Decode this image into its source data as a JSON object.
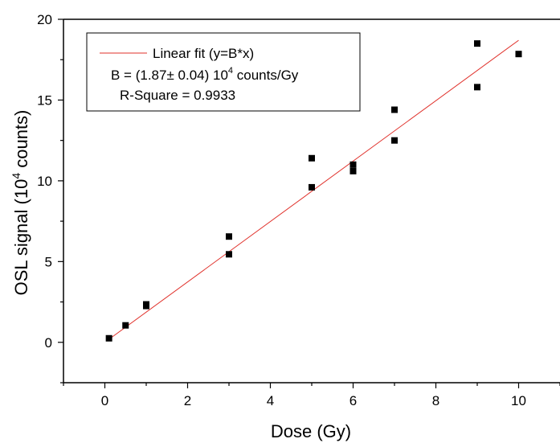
{
  "chart_data": {
    "type": "scatter",
    "xlabel": "Dose (Gy)",
    "ylabel_main": "OSL signal (10",
    "ylabel_sup": "4",
    "ylabel_tail": " counts)",
    "xlim": [
      -1,
      11
    ],
    "ylim": [
      -2.5,
      20
    ],
    "x_ticks": [
      0,
      2,
      4,
      6,
      8,
      10
    ],
    "y_ticks": [
      0,
      5,
      10,
      15,
      20
    ],
    "grid": false,
    "legend_placement": "top-left",
    "series": [
      {
        "marker": "square",
        "color": "#000000",
        "x": [
          0.1,
          0.5,
          1,
          1,
          3,
          3,
          5,
          5,
          6,
          6,
          7,
          7,
          9,
          9,
          10
        ],
        "y": [
          0.25,
          1.05,
          2.25,
          2.35,
          5.45,
          6.55,
          9.6,
          11.4,
          10.6,
          11.0,
          12.5,
          14.4,
          15.8,
          18.5,
          17.85
        ]
      }
    ],
    "fit": {
      "label": "Linear fit (y=B*x)",
      "slope": 1.87,
      "x_range": [
        0.1,
        10
      ],
      "color": "#e0302a"
    },
    "annotation": {
      "b_prefix": "B = (1.87± 0.04) 10",
      "b_sup": "4",
      "b_suffix": " counts/Gy",
      "r_square": "R-Square = 0.9933"
    }
  }
}
